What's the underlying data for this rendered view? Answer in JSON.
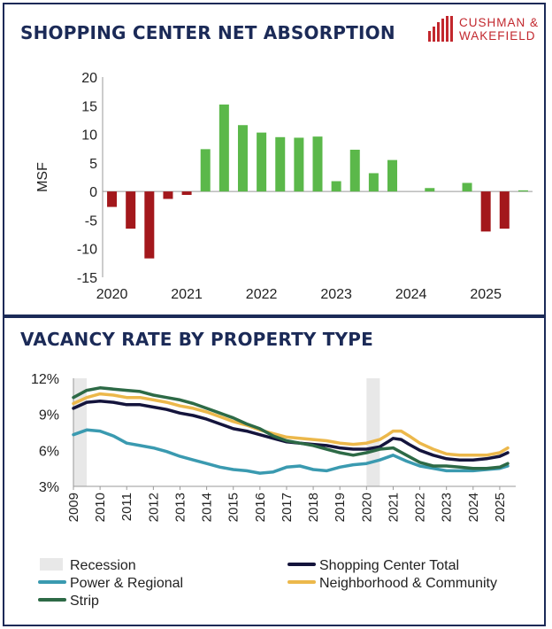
{
  "brand": {
    "line1": "CUSHMAN &",
    "line2": "WAKEFIELD",
    "color": "#c2272d"
  },
  "chart_data": [
    {
      "type": "bar",
      "title": "SHOPPING CENTER NET ABSORPTION",
      "ylabel": "MSF",
      "xlabel": "",
      "ylim": [
        -15,
        20
      ],
      "yticks": [
        20,
        15,
        10,
        5,
        0,
        -5,
        -10,
        -15
      ],
      "xtick_labels": [
        "2020",
        "2021",
        "2022",
        "2023",
        "2024",
        "2025"
      ],
      "categories": [
        "2020 Q1",
        "2020 Q2",
        "2020 Q3",
        "2020 Q4",
        "2021 Q1",
        "2021 Q2",
        "2021 Q3",
        "2021 Q4",
        "2022 Q1",
        "2022 Q2",
        "2022 Q3",
        "2022 Q4",
        "2023 Q1",
        "2023 Q2",
        "2023 Q3",
        "2023 Q4",
        "2024 Q1",
        "2024 Q2",
        "2024 Q3",
        "2024 Q4",
        "2025 Q1",
        "2025 Q2",
        "2025 Q3"
      ],
      "values": [
        -2.7,
        -6.5,
        -11.7,
        -1.3,
        -0.6,
        7.4,
        15.2,
        11.6,
        10.3,
        9.5,
        9.4,
        9.6,
        1.8,
        7.3,
        3.2,
        5.5,
        0.0,
        0.6,
        0.0,
        1.5,
        -7.0,
        -6.5,
        0.2
      ],
      "colors": {
        "positive": "#5bb84a",
        "negative": "#a3181c"
      }
    },
    {
      "type": "line",
      "title": "VACANCY RATE BY PROPERTY TYPE",
      "ylabel": "",
      "xlabel": "",
      "ylim": [
        3,
        12
      ],
      "xlim": [
        2009,
        2025.6
      ],
      "yticks": [
        "12%",
        "9%",
        "6%",
        "3%"
      ],
      "ytick_values": [
        12,
        9,
        6,
        3
      ],
      "xtick_labels": [
        "2009",
        "2010",
        "2011",
        "2012",
        "2013",
        "2014",
        "2015",
        "2016",
        "2017",
        "2018",
        "2019",
        "2020",
        "2021",
        "2022",
        "2023",
        "2024",
        "2025"
      ],
      "recessions": [
        {
          "name": "Recession",
          "start": 2009.0,
          "end": 2009.5
        },
        {
          "name": "Recession",
          "start": 2020.0,
          "end": 2020.5
        }
      ],
      "series": [
        {
          "name": "Recession",
          "color": "#e8e8e8",
          "kind": "band"
        },
        {
          "name": "Shopping Center Total",
          "color": "#14143c",
          "x": [
            2009,
            2009.5,
            2010,
            2010.5,
            2011,
            2011.5,
            2012,
            2012.5,
            2013,
            2013.5,
            2014,
            2014.5,
            2015,
            2015.5,
            2016,
            2016.5,
            2017,
            2017.5,
            2018,
            2018.5,
            2019,
            2019.5,
            2020,
            2020.5,
            2020.8,
            2021,
            2021.3,
            2021.6,
            2022,
            2022.5,
            2023,
            2023.5,
            2024,
            2024.5,
            2025,
            2025.3
          ],
          "values": [
            9.5,
            10.0,
            10.1,
            10.0,
            9.8,
            9.8,
            9.6,
            9.4,
            9.1,
            8.9,
            8.6,
            8.2,
            7.8,
            7.6,
            7.3,
            7.0,
            6.7,
            6.6,
            6.5,
            6.4,
            6.2,
            6.1,
            6.1,
            6.3,
            6.7,
            7.0,
            6.9,
            6.5,
            6.0,
            5.6,
            5.3,
            5.2,
            5.2,
            5.3,
            5.5,
            5.8
          ]
        },
        {
          "name": "Power & Regional",
          "color": "#3a9ab0",
          "x": [
            2009,
            2009.5,
            2010,
            2010.5,
            2011,
            2011.5,
            2012,
            2012.5,
            2013,
            2013.5,
            2014,
            2014.5,
            2015,
            2015.5,
            2016,
            2016.5,
            2017,
            2017.5,
            2018,
            2018.5,
            2019,
            2019.5,
            2020,
            2020.5,
            2021,
            2021.5,
            2022,
            2022.5,
            2023,
            2023.5,
            2024,
            2024.5,
            2025,
            2025.3
          ],
          "values": [
            7.3,
            7.7,
            7.6,
            7.2,
            6.6,
            6.4,
            6.2,
            5.9,
            5.5,
            5.2,
            4.9,
            4.6,
            4.4,
            4.3,
            4.1,
            4.2,
            4.6,
            4.7,
            4.4,
            4.3,
            4.6,
            4.8,
            4.9,
            5.2,
            5.6,
            5.1,
            4.7,
            4.5,
            4.3,
            4.3,
            4.3,
            4.4,
            4.5,
            4.7
          ]
        },
        {
          "name": "Neighborhood & Community",
          "color": "#ecb84b",
          "x": [
            2009,
            2009.5,
            2010,
            2010.5,
            2011,
            2011.5,
            2012,
            2012.5,
            2013,
            2013.5,
            2014,
            2014.5,
            2015,
            2015.5,
            2016,
            2016.5,
            2017,
            2017.5,
            2018,
            2018.5,
            2019,
            2019.5,
            2020,
            2020.5,
            2020.8,
            2021,
            2021.3,
            2021.6,
            2022,
            2022.5,
            2023,
            2023.5,
            2024,
            2024.5,
            2025,
            2025.3
          ],
          "values": [
            9.9,
            10.4,
            10.7,
            10.6,
            10.4,
            10.4,
            10.2,
            10.0,
            9.7,
            9.5,
            9.2,
            8.8,
            8.4,
            8.1,
            7.7,
            7.4,
            7.1,
            7.0,
            6.9,
            6.8,
            6.6,
            6.5,
            6.6,
            6.9,
            7.3,
            7.6,
            7.6,
            7.2,
            6.6,
            6.1,
            5.7,
            5.6,
            5.6,
            5.6,
            5.8,
            6.2
          ]
        },
        {
          "name": "Strip",
          "color": "#2d6a46",
          "x": [
            2009,
            2009.5,
            2010,
            2010.5,
            2011,
            2011.5,
            2012,
            2012.5,
            2013,
            2013.5,
            2014,
            2014.5,
            2015,
            2015.5,
            2016,
            2016.5,
            2017,
            2017.5,
            2018,
            2018.5,
            2019,
            2019.5,
            2020,
            2020.5,
            2021,
            2021.5,
            2022,
            2022.5,
            2023,
            2023.5,
            2024,
            2024.5,
            2025,
            2025.3
          ],
          "values": [
            10.4,
            11.0,
            11.2,
            11.1,
            11.0,
            10.9,
            10.6,
            10.4,
            10.2,
            9.9,
            9.5,
            9.1,
            8.7,
            8.2,
            7.8,
            7.2,
            6.8,
            6.6,
            6.4,
            6.1,
            5.8,
            5.6,
            5.8,
            6.1,
            6.2,
            5.6,
            5.0,
            4.7,
            4.7,
            4.6,
            4.5,
            4.5,
            4.6,
            4.9
          ]
        }
      ],
      "legend": [
        {
          "name": "Recession",
          "color": "#e8e8e8"
        },
        {
          "name": "Shopping Center Total",
          "color": "#14143c"
        },
        {
          "name": "Power & Regional",
          "color": "#3a9ab0"
        },
        {
          "name": "Neighborhood & Community",
          "color": "#ecb84b"
        },
        {
          "name": "Strip",
          "color": "#2d6a46"
        }
      ]
    }
  ]
}
